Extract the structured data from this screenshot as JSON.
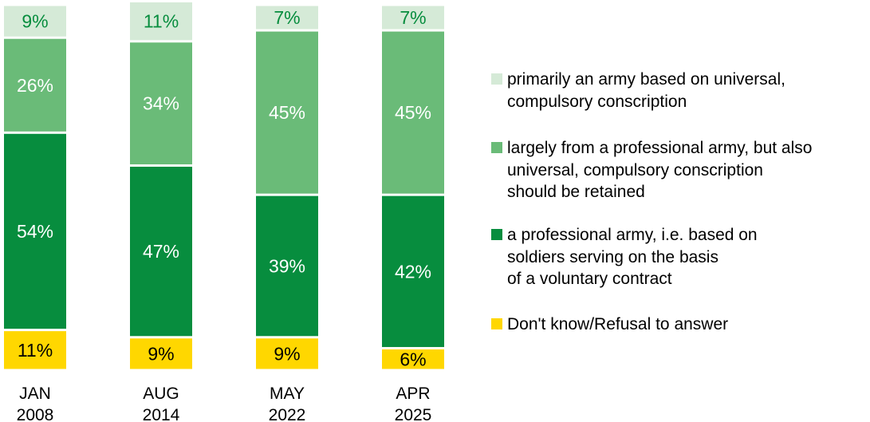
{
  "chart_data": {
    "type": "bar",
    "stacked": true,
    "orientation": "vertical",
    "categories": [
      "JAN\n2008",
      "AUG\n2014",
      "MAY\n2022",
      "APR\n2025"
    ],
    "series": [
      {
        "name": "Don't know/Refusal to answer",
        "color": "#FFD700",
        "values": [
          11,
          9,
          9,
          6
        ],
        "labels": [
          "11%",
          "9%",
          "9%",
          "6%"
        ]
      },
      {
        "name": "a professional army, i.e. based on\nsoldiers serving on the basis\nof a voluntary contract",
        "color": "#078D3E",
        "values": [
          54,
          47,
          39,
          42
        ],
        "labels": [
          "54%",
          "47%",
          "39%",
          "42%"
        ]
      },
      {
        "name": "largely from a professional army, but also\nuniversal, compulsory conscription\nshould be retained",
        "color": "#6ABB78",
        "values": [
          26,
          34,
          45,
          45
        ],
        "labels": [
          "26%",
          "34%",
          "45%",
          "45%"
        ]
      },
      {
        "name": "primarily an army based on universal,\ncompulsory conscription",
        "color": "#D5EAD7",
        "values": [
          9,
          11,
          7,
          7
        ],
        "labels": [
          "9%",
          "11%",
          "7%",
          "7%"
        ]
      }
    ],
    "legend_position": "right",
    "grid": false
  }
}
